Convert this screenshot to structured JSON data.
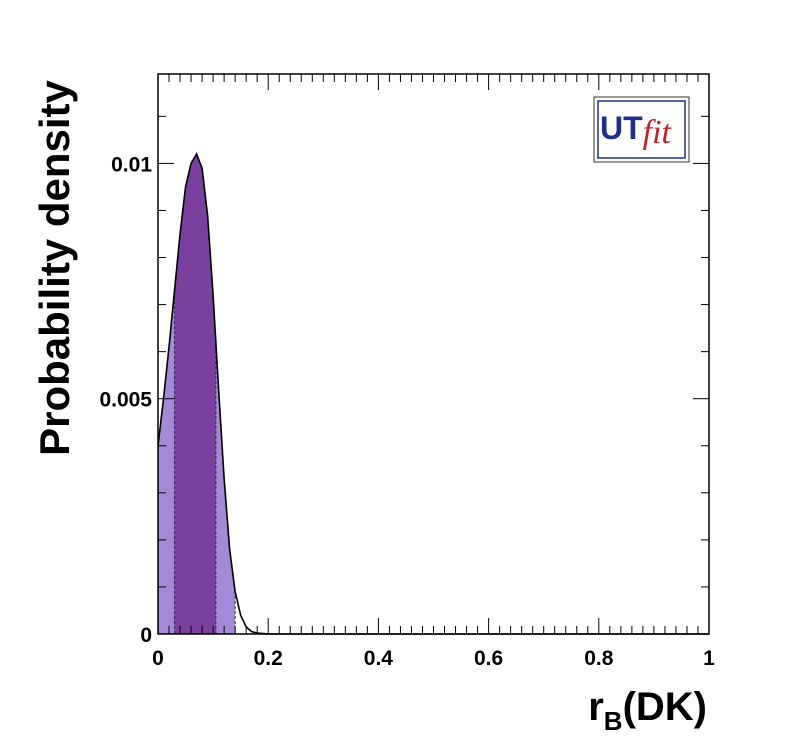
{
  "chart_data": {
    "type": "area",
    "title": "",
    "xlabel_main": "r",
    "xlabel_sub": "B",
    "xlabel_suffix": "(DK)",
    "ylabel": "Probability density",
    "xlim": [
      0,
      1
    ],
    "ylim": [
      0,
      0.0119
    ],
    "x_ticks": [
      {
        "value": 0,
        "label": "0"
      },
      {
        "value": 0.2,
        "label": "0.2"
      },
      {
        "value": 0.4,
        "label": "0.4"
      },
      {
        "value": 0.6,
        "label": "0.6"
      },
      {
        "value": 0.8,
        "label": "0.8"
      },
      {
        "value": 1,
        "label": "1"
      }
    ],
    "y_ticks": [
      {
        "value": 0,
        "label": "0"
      },
      {
        "value": 0.005,
        "label": "0.005"
      },
      {
        "value": 0.01,
        "label": "0.01"
      }
    ],
    "grid": false,
    "legend": "none",
    "curve": {
      "x": [
        0,
        0.01,
        0.02,
        0.03,
        0.04,
        0.05,
        0.06,
        0.07,
        0.08,
        0.09,
        0.1,
        0.11,
        0.12,
        0.13,
        0.14,
        0.15,
        0.16,
        0.17,
        0.18,
        0.19,
        0.2
      ],
      "y": [
        0.004,
        0.005,
        0.0061,
        0.0073,
        0.0085,
        0.0095,
        0.01,
        0.0102,
        0.0099,
        0.0089,
        0.0072,
        0.0052,
        0.0033,
        0.0018,
        0.0009,
        0.0004,
        0.00015,
        5e-05,
        2e-05,
        1e-05,
        0.0
      ]
    },
    "interval_68": [
      0.03,
      0.105
    ],
    "interval_95": [
      0.0,
      0.14
    ],
    "colors": {
      "inner": "#7b3f9e",
      "outer": "#a489d6",
      "curve": "#000000",
      "frame": "#000000"
    }
  },
  "logo": {
    "text_a": "UT",
    "text_b": "fit",
    "color_a": "#1f2f8a",
    "color_b": "#c0202a"
  }
}
